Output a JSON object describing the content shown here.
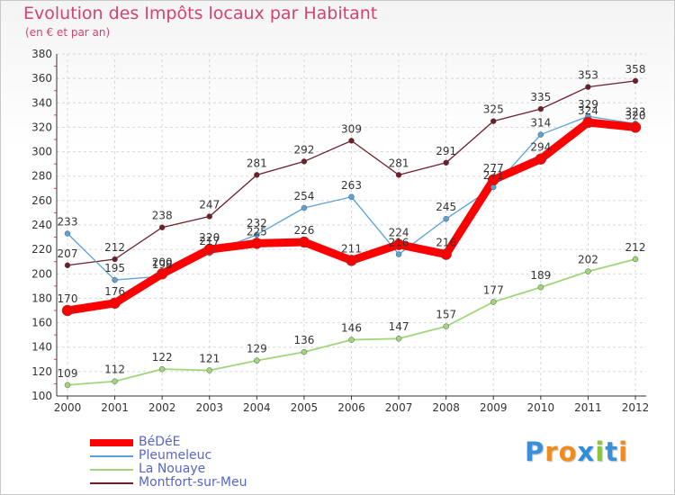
{
  "chart_data": {
    "type": "line",
    "title": "Evolution des Impôts locaux par Habitant",
    "subtitle": "(en € et par an)",
    "xlabel": "",
    "ylabel": "",
    "ylim": [
      100,
      380
    ],
    "yticks": [
      100,
      120,
      140,
      160,
      180,
      200,
      220,
      240,
      260,
      280,
      300,
      320,
      340,
      360,
      380
    ],
    "grid": true,
    "legend_position": "bottom-left",
    "categories": [
      "2000",
      "2001",
      "2002",
      "2003",
      "2004",
      "2005",
      "2006",
      "2007",
      "2008",
      "2009",
      "2010",
      "2011",
      "2012"
    ],
    "series": [
      {
        "name": "Montfort-sur-Meu",
        "color": "#6e1e28",
        "values": [
          207,
          212,
          238,
          247,
          281,
          292,
          309,
          281,
          291,
          325,
          335,
          353,
          358
        ],
        "labels": [
          "207",
          "212",
          "238",
          "247",
          "281",
          "292",
          "309",
          "281",
          "291",
          "325",
          "335",
          "353",
          "358"
        ]
      },
      {
        "name": "La Nouaye",
        "color": "#9fd67a",
        "values": [
          109,
          112,
          122,
          121,
          129,
          136,
          146,
          147,
          157,
          177,
          189,
          202,
          212
        ],
        "labels": [
          "109",
          "112",
          "122",
          "121",
          "129",
          "136",
          "146",
          "147",
          "157",
          "177",
          "189",
          "202",
          "212"
        ]
      },
      {
        "name": "Pleumeleuc",
        "color": "#5ba0d7",
        "values": [
          233,
          195,
          198,
          217,
          232,
          254,
          263,
          216,
          245,
          271,
          314,
          329,
          323
        ],
        "labels": [
          "233",
          "195",
          "198",
          "217",
          "232",
          "254",
          "263",
          "216",
          "245",
          "271",
          "314",
          "329",
          "323"
        ]
      },
      {
        "name": "BéDéE",
        "color": "#ff0000",
        "values": [
          170,
          176,
          200,
          220,
          225,
          226,
          211,
          224,
          216,
          277,
          294,
          324,
          320
        ],
        "labels": [
          "170",
          "176",
          "200",
          "220",
          "225",
          "226",
          "211",
          "224",
          "216",
          "277",
          "294",
          "324",
          "320"
        ]
      }
    ]
  },
  "legend": [
    {
      "name": "BéDéE",
      "color": "#ff0000"
    },
    {
      "name": "Pleumeleuc",
      "color": "#5ba0d7"
    },
    {
      "name": "La Nouaye",
      "color": "#9fd67a"
    },
    {
      "name": "Montfort-sur-Meu",
      "color": "#6e1e28"
    }
  ],
  "logo": {
    "letters": [
      "P",
      "r",
      "o",
      "x",
      "i",
      "t",
      "i"
    ],
    "colors": [
      "#3a8fd8",
      "#f08c1e",
      "#f08c1e",
      "#2e8fd8",
      "#8cc63e",
      "#3a8fd8",
      "#f08c1e"
    ],
    "alt_text": "Proxiti"
  }
}
